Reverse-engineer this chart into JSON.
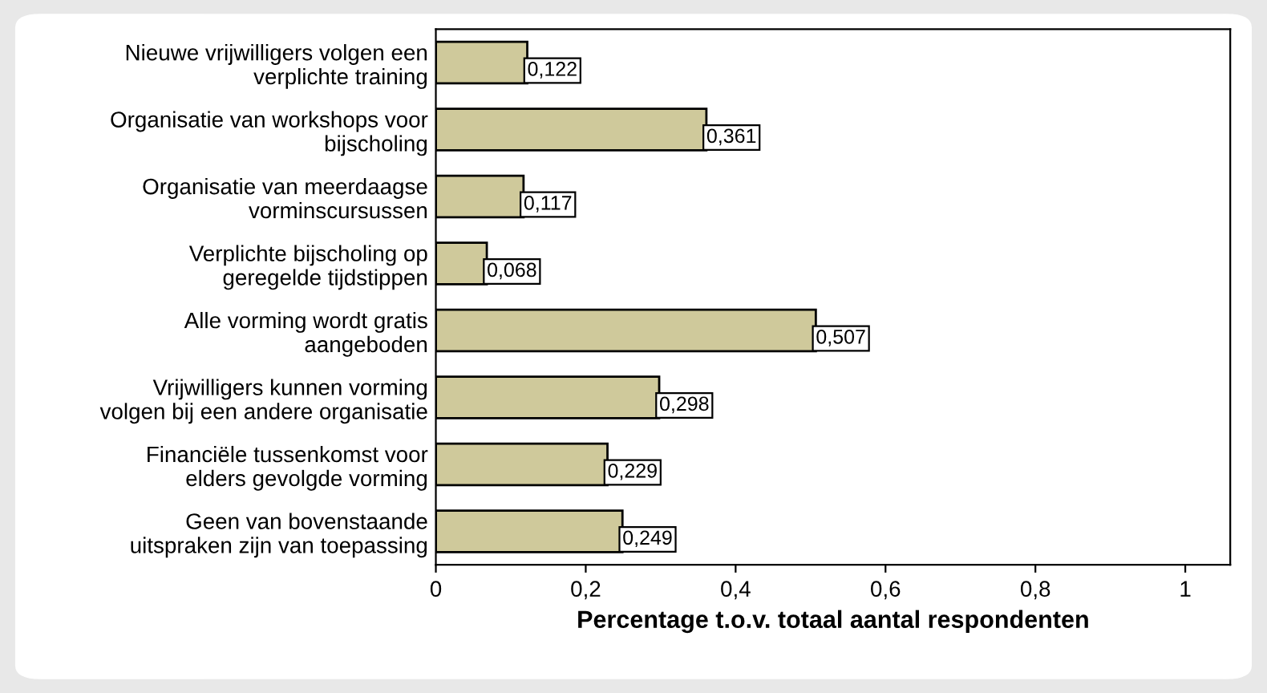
{
  "chart_data": {
    "type": "bar",
    "orientation": "horizontal",
    "xlabel": "Percentage t.o.v. totaal aantal respondenten",
    "categories": [
      "Nieuwe vrijwilligers volgen een\nverplichte training",
      "Organisatie van workshops voor\nbijscholing",
      "Organisatie van meerdaagse\nvorminscursussen",
      "Verplichte bijscholing op\ngeregelde tijdstippen",
      "Alle vorming wordt gratis\naangeboden",
      "Vrijwilligers kunnen vorming\nvolgen bij een andere organisatie",
      "Financiële tussenkomst voor\nelders gevolgde vorming",
      "Geen van bovenstaande\nuitspraken zijn van toepassing"
    ],
    "values": [
      0.122,
      0.361,
      0.117,
      0.068,
      0.507,
      0.298,
      0.229,
      0.249
    ],
    "value_labels": [
      "0,122",
      "0,361",
      "0,117",
      "0,068",
      "0,507",
      "0,298",
      "0,229",
      "0,249"
    ],
    "color": "#cfc99b",
    "xlim": [
      0,
      1.06
    ],
    "xticks": [
      0,
      {
        "value": 0.2,
        "label": "0,2"
      },
      {
        "value": 0.4,
        "label": "0,4"
      },
      {
        "value": 0.6,
        "label": "0,6"
      },
      {
        "value": 0.8,
        "label": "0,8"
      },
      1
    ],
    "grid": false,
    "legend": false
  }
}
